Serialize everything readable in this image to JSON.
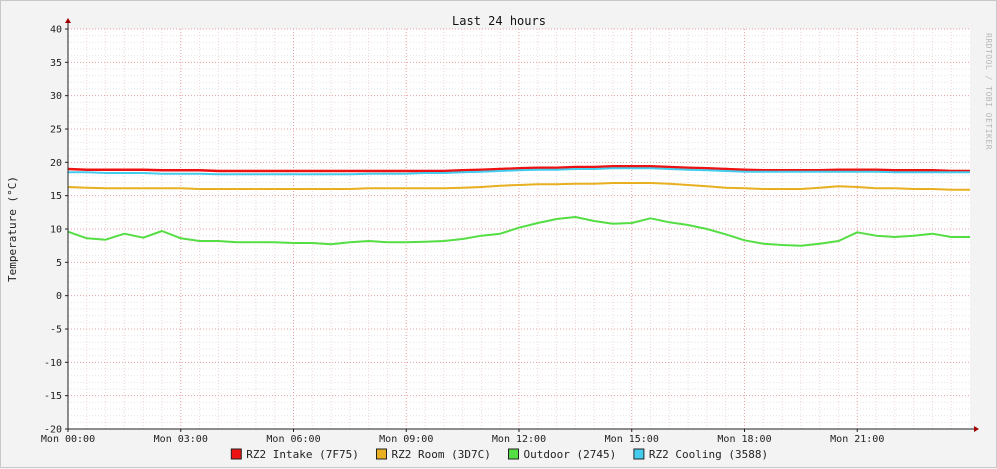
{
  "chart_data": {
    "type": "line",
    "title": "Last 24 hours",
    "ylabel": "Temperature (°C)",
    "xlabel": "",
    "watermark": "RRDTOOL / TOBI OETIKER",
    "ylim": [
      -20,
      40
    ],
    "y_ticks": [
      40,
      35,
      30,
      25,
      20,
      15,
      10,
      5,
      0,
      -5,
      -10,
      -15,
      -20
    ],
    "xlim": [
      0,
      24
    ],
    "x_ticks": [
      {
        "value": 0,
        "label": "Mon 00:00"
      },
      {
        "value": 3,
        "label": "Mon 03:00"
      },
      {
        "value": 6,
        "label": "Mon 06:00"
      },
      {
        "value": 9,
        "label": "Mon 09:00"
      },
      {
        "value": 12,
        "label": "Mon 12:00"
      },
      {
        "value": 15,
        "label": "Mon 15:00"
      },
      {
        "value": 18,
        "label": "Mon 18:00"
      },
      {
        "value": 21,
        "label": "Mon 21:00"
      }
    ],
    "grid": true,
    "legend_position": "bottom",
    "x": [
      0,
      0.5,
      1,
      1.5,
      2,
      2.5,
      3,
      3.5,
      4,
      4.5,
      5,
      5.5,
      6,
      6.5,
      7,
      7.5,
      8,
      8.5,
      9,
      9.5,
      10,
      10.5,
      11,
      11.5,
      12,
      12.5,
      13,
      13.5,
      14,
      14.5,
      15,
      15.5,
      16,
      16.5,
      17,
      17.5,
      18,
      18.5,
      19,
      19.5,
      20,
      20.5,
      21,
      21.5,
      22,
      22.5,
      23,
      23.5,
      24
    ],
    "series": [
      {
        "name": "RZ2 Intake (7F75)",
        "color": "#ee1111",
        "values": [
          19.0,
          18.9,
          18.9,
          18.9,
          18.9,
          18.8,
          18.8,
          18.8,
          18.7,
          18.7,
          18.7,
          18.7,
          18.7,
          18.7,
          18.7,
          18.7,
          18.7,
          18.7,
          18.7,
          18.7,
          18.7,
          18.8,
          18.9,
          19.0,
          19.1,
          19.2,
          19.2,
          19.3,
          19.3,
          19.4,
          19.4,
          19.4,
          19.3,
          19.2,
          19.1,
          19.0,
          18.9,
          18.8,
          18.8,
          18.8,
          18.8,
          18.9,
          18.9,
          18.9,
          18.8,
          18.8,
          18.8,
          18.7,
          18.7
        ]
      },
      {
        "name": "RZ2 Room (3D7C)",
        "color": "#e8b020",
        "values": [
          16.3,
          16.2,
          16.1,
          16.1,
          16.1,
          16.1,
          16.1,
          16.0,
          16.0,
          16.0,
          16.0,
          16.0,
          16.0,
          16.0,
          16.0,
          16.0,
          16.1,
          16.1,
          16.1,
          16.1,
          16.1,
          16.2,
          16.3,
          16.5,
          16.6,
          16.7,
          16.7,
          16.8,
          16.8,
          16.9,
          16.9,
          16.9,
          16.8,
          16.6,
          16.4,
          16.2,
          16.1,
          16.0,
          16.0,
          16.0,
          16.2,
          16.4,
          16.3,
          16.1,
          16.1,
          16.0,
          16.0,
          15.9,
          15.9
        ]
      },
      {
        "name": "Outdoor (2745)",
        "color": "#55dd44",
        "values": [
          9.6,
          8.6,
          8.4,
          9.3,
          8.7,
          9.7,
          8.6,
          8.2,
          8.2,
          8.0,
          8.0,
          8.0,
          7.9,
          7.9,
          7.7,
          8.0,
          8.2,
          8.0,
          8.0,
          8.1,
          8.2,
          8.5,
          9.0,
          9.3,
          10.2,
          10.9,
          11.5,
          11.8,
          11.2,
          10.8,
          10.9,
          11.6,
          11.0,
          10.6,
          10.0,
          9.2,
          8.3,
          7.8,
          7.6,
          7.5,
          7.8,
          8.2,
          9.5,
          9.0,
          8.8,
          9.0,
          9.3,
          8.8,
          8.8
        ]
      },
      {
        "name": "RZ2 Cooling (3588)",
        "color": "#44ccee",
        "values": [
          18.5,
          18.5,
          18.4,
          18.4,
          18.4,
          18.3,
          18.3,
          18.3,
          18.2,
          18.2,
          18.2,
          18.2,
          18.2,
          18.2,
          18.2,
          18.2,
          18.3,
          18.3,
          18.3,
          18.4,
          18.4,
          18.5,
          18.6,
          18.7,
          18.8,
          18.9,
          18.9,
          19.0,
          19.0,
          19.1,
          19.1,
          19.1,
          19.0,
          18.9,
          18.8,
          18.7,
          18.6,
          18.6,
          18.6,
          18.6,
          18.6,
          18.6,
          18.6,
          18.6,
          18.5,
          18.5,
          18.5,
          18.5,
          18.5
        ]
      }
    ],
    "legend": [
      {
        "label": "RZ2 Intake (7F75)",
        "color": "#ee1111"
      },
      {
        "label": "RZ2 Room (3D7C)",
        "color": "#e8b020"
      },
      {
        "label": "Outdoor (2745)",
        "color": "#55dd44"
      },
      {
        "label": "RZ2 Cooling (3588)",
        "color": "#44ccee"
      }
    ]
  }
}
